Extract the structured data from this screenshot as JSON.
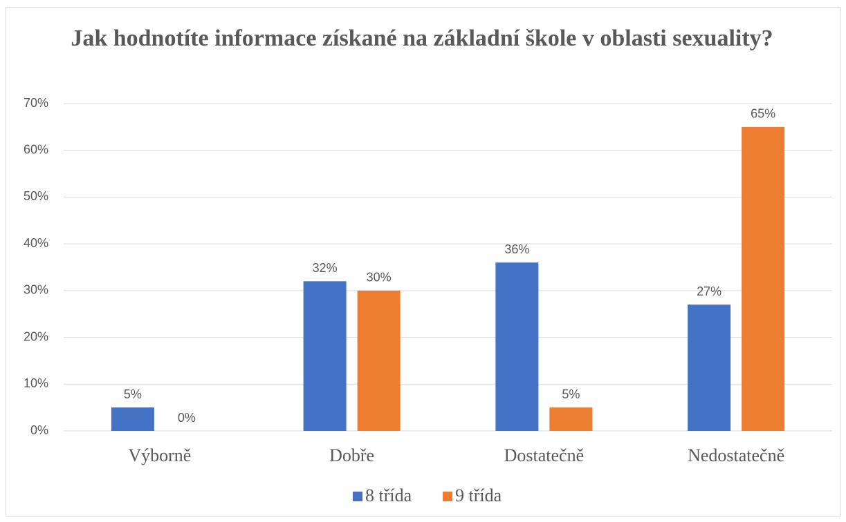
{
  "chart_data": {
    "type": "bar",
    "title": "Jak hodnotíte informace získané na základní škole v oblasti sexuality?",
    "categories": [
      "Výborně",
      "Dobře",
      "Dostatečně",
      "Nedostatečně"
    ],
    "series": [
      {
        "name": "8 třída",
        "color": "#4472c4",
        "values": [
          5,
          32,
          36,
          27
        ],
        "value_labels": [
          "5%",
          "32%",
          "36%",
          "27%"
        ]
      },
      {
        "name": "9 třída",
        "color": "#ed7d31",
        "values": [
          0,
          30,
          5,
          65
        ],
        "value_labels": [
          "0%",
          "30%",
          "5%",
          "65%"
        ]
      }
    ],
    "ylim": [
      0,
      70
    ],
    "yticks": [
      {
        "value": 0,
        "label": "0%"
      },
      {
        "value": 10,
        "label": "10%"
      },
      {
        "value": 20,
        "label": "20%"
      },
      {
        "value": 30,
        "label": "30%"
      },
      {
        "value": 40,
        "label": "40%"
      },
      {
        "value": 50,
        "label": "50%"
      },
      {
        "value": 60,
        "label": "60%"
      },
      {
        "value": 70,
        "label": "70%"
      }
    ],
    "grid": true,
    "legend": "bottom"
  }
}
